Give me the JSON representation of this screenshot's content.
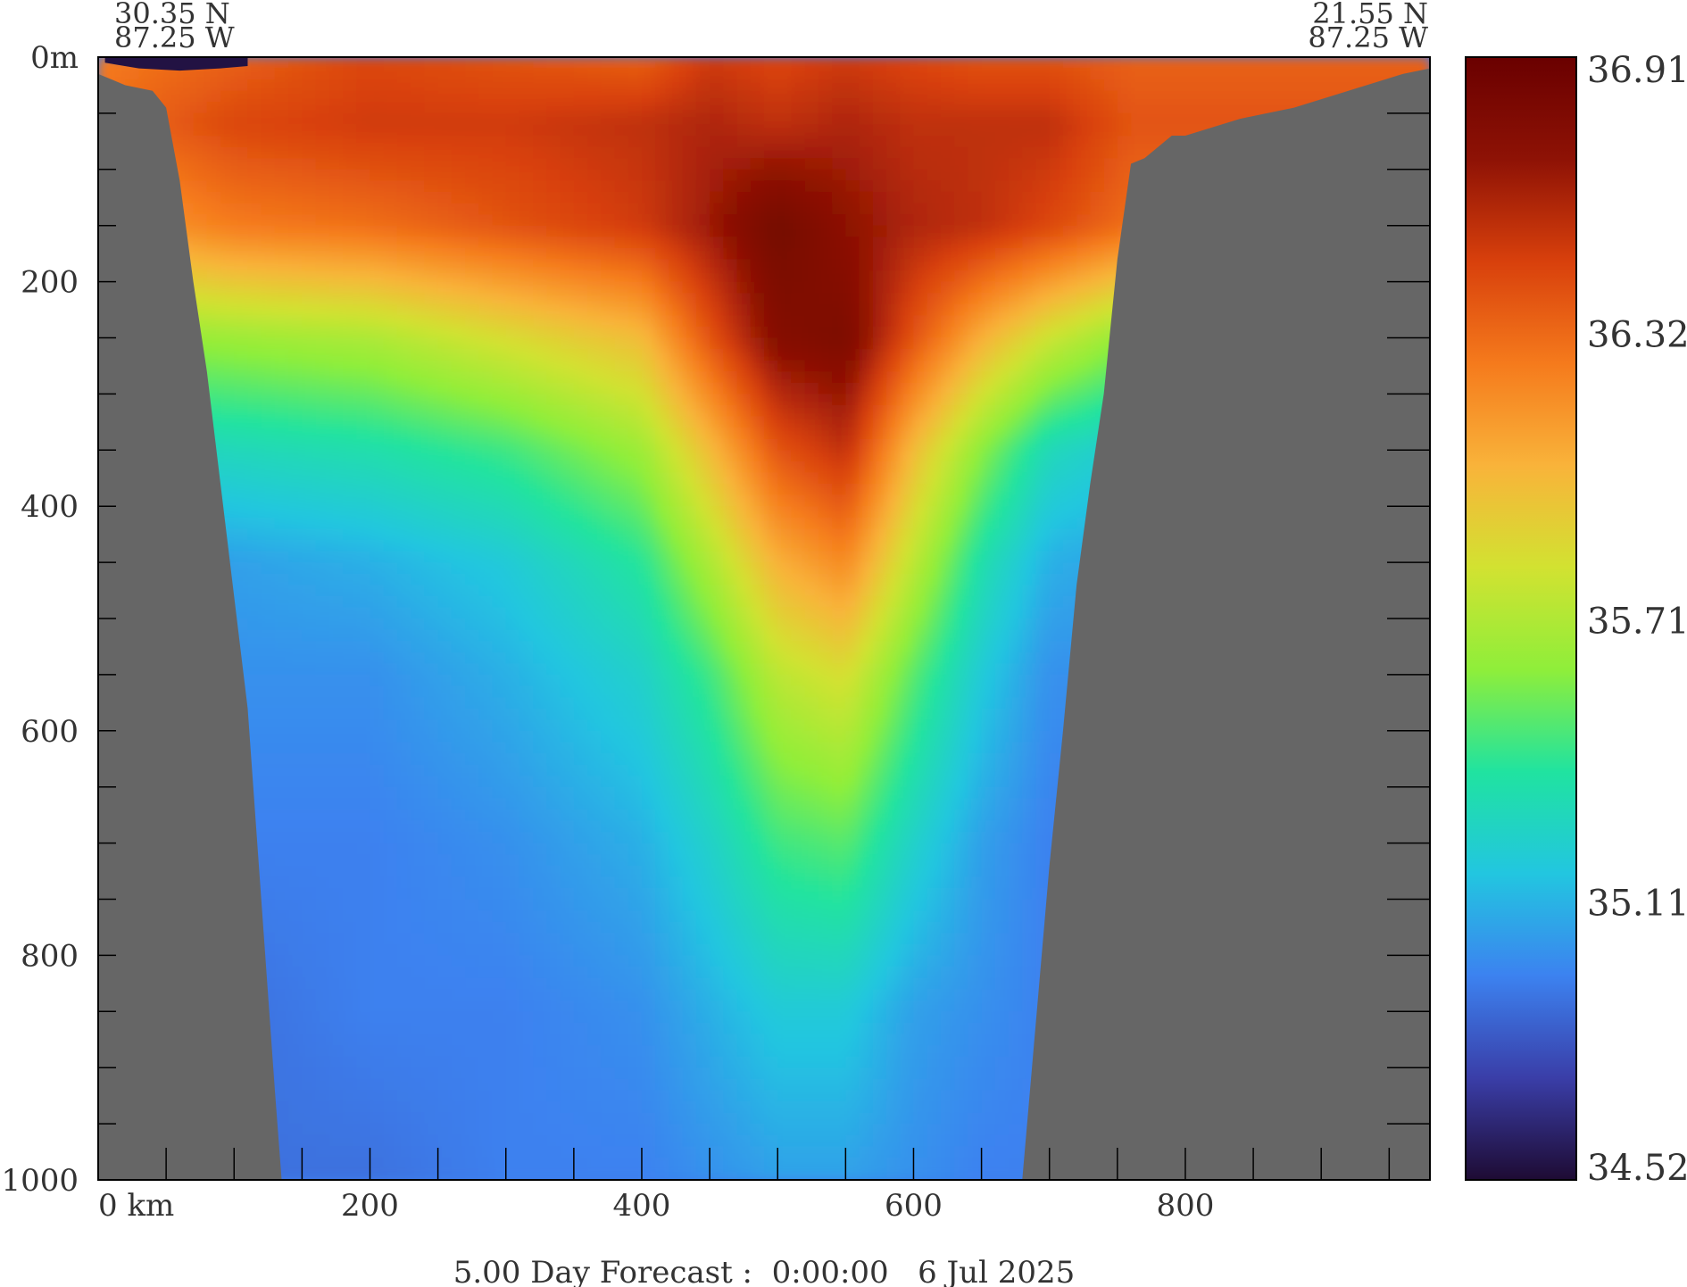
{
  "chart_data": {
    "type": "heatmap",
    "title": "",
    "xlabel": "",
    "ylabel": "",
    "x_unit": "km",
    "y_unit": "m",
    "xlim": [
      0,
      980
    ],
    "ylim": [
      0,
      1000
    ],
    "y_inverted": true,
    "x_ticks": [
      0,
      200,
      400,
      600,
      800
    ],
    "x_tick_labels": [
      "0 km",
      "200",
      "400",
      "600",
      "800"
    ],
    "y_ticks": [
      0,
      200,
      400,
      600,
      800,
      1000
    ],
    "y_tick_labels": [
      "0m",
      "200",
      "400",
      "600",
      "800",
      "1000"
    ],
    "start_point": {
      "lat": "30.35 N",
      "lon": "87.25 W"
    },
    "end_point": {
      "lat": "21.55 N",
      "lon": "87.25 W"
    },
    "colorbar": {
      "min": 34.52,
      "max": 36.91,
      "labels": [
        "36.91",
        "36.32",
        "35.71",
        "35.11",
        "34.52"
      ],
      "label_values": [
        36.91,
        36.32,
        35.71,
        35.11,
        34.52
      ],
      "colormap": [
        "#1e0b33",
        "#3a3ea8",
        "#3c82f0",
        "#22c6e0",
        "#20e3a0",
        "#8fee3a",
        "#d2e231",
        "#f9b33a",
        "#f57a1c",
        "#d8400c",
        "#8e1205",
        "#6a0000"
      ]
    },
    "land_color": "#666666",
    "bathymetry": {
      "x_km": [
        0,
        20,
        40,
        50,
        60,
        70,
        80,
        90,
        100,
        110,
        120,
        130,
        135,
        150,
        200,
        300,
        400,
        500,
        600,
        680,
        690,
        700,
        710,
        720,
        730,
        740,
        750,
        760,
        770,
        790,
        800,
        840,
        880,
        920,
        960,
        980
      ],
      "depth_m": [
        15,
        25,
        30,
        45,
        110,
        200,
        280,
        380,
        480,
        580,
        750,
        920,
        1000,
        1000,
        1000,
        1000,
        1000,
        1000,
        1000,
        1000,
        860,
        720,
        600,
        470,
        380,
        300,
        180,
        95,
        90,
        70,
        70,
        55,
        45,
        30,
        15,
        10
      ]
    },
    "salinity_profile": {
      "x_km": [
        0,
        100,
        200,
        300,
        400,
        450,
        500,
        550,
        600,
        650,
        700,
        760
      ],
      "depth_m": [
        0,
        60,
        150,
        250,
        350,
        450,
        550,
        700,
        850,
        1000
      ],
      "values": [
        [
          36.25,
          36.35,
          36.45,
          36.4,
          36.35,
          36.5,
          36.45,
          36.5,
          36.45,
          36.4,
          36.4,
          36.35
        ],
        [
          36.3,
          36.45,
          36.5,
          36.5,
          36.55,
          36.6,
          36.55,
          36.6,
          36.55,
          36.55,
          36.55,
          36.4
        ],
        [
          36.1,
          36.25,
          36.3,
          36.4,
          36.5,
          36.65,
          36.85,
          36.7,
          36.6,
          36.55,
          36.45,
          36.3
        ],
        [
          35.6,
          35.65,
          35.7,
          35.85,
          36.0,
          36.4,
          36.75,
          36.8,
          36.4,
          36.05,
          35.8,
          35.6
        ],
        [
          35.25,
          35.3,
          35.35,
          35.45,
          35.65,
          36.0,
          36.4,
          36.55,
          36.0,
          35.6,
          35.3,
          35.2
        ],
        [
          35.0,
          35.05,
          35.1,
          35.2,
          35.4,
          35.7,
          36.05,
          36.2,
          35.75,
          35.35,
          35.1,
          35.05
        ],
        [
          34.95,
          35.0,
          35.0,
          35.1,
          35.25,
          35.45,
          35.75,
          35.85,
          35.5,
          35.2,
          35.0,
          35.0
        ],
        [
          34.9,
          34.95,
          34.95,
          35.0,
          35.1,
          35.25,
          35.45,
          35.5,
          35.25,
          35.05,
          34.95,
          34.95
        ],
        [
          34.9,
          34.9,
          34.95,
          34.95,
          35.0,
          35.1,
          35.2,
          35.2,
          35.05,
          35.0,
          34.95,
          34.95
        ],
        [
          34.9,
          34.9,
          34.9,
          34.95,
          34.95,
          35.0,
          35.05,
          35.05,
          35.0,
          34.95,
          34.95,
          34.95
        ]
      ]
    },
    "surface_fresh_lens": {
      "x_km": [
        5,
        30,
        60,
        90,
        110
      ],
      "depth_m": [
        5,
        10,
        12,
        10,
        8
      ],
      "value": 34.55
    }
  },
  "footer": "5.00 Day Forecast :  0:00:00   6 Jul 2025"
}
